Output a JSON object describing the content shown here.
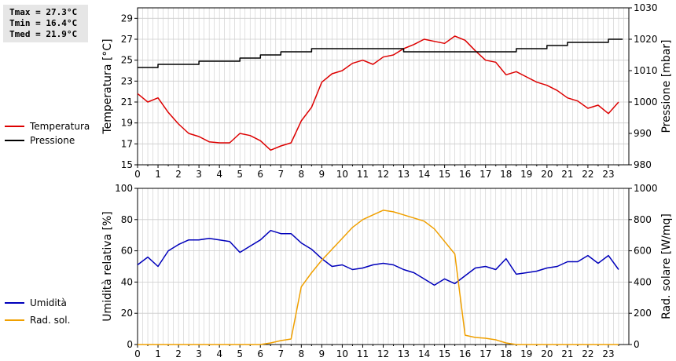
{
  "stats": {
    "tmax": "Tmax = 27.3°C",
    "tmin": "Tmin = 16.4°C",
    "tmed": "Tmed = 21.9°C"
  },
  "chart_data": [
    {
      "type": "line",
      "x_ticks": [
        "0",
        "1",
        "2",
        "3",
        "4",
        "5",
        "6",
        "7",
        "8",
        "9",
        "10",
        "11",
        "12",
        "13",
        "14",
        "15",
        "16",
        "17",
        "18",
        "19",
        "20",
        "21",
        "22",
        "23"
      ],
      "xlim": [
        0,
        24
      ],
      "ylabel": "Temperatura [°C]",
      "y2label": "Pressione [mbar]",
      "ylim": [
        15,
        30
      ],
      "y_ticks": [
        15,
        17,
        19,
        21,
        23,
        25,
        27,
        29
      ],
      "y2lim": [
        980,
        1030
      ],
      "y2_ticks": [
        980,
        990,
        1000,
        1010,
        1020,
        1030
      ],
      "grid": true,
      "legend_position": "left",
      "series": [
        {
          "name": "Temperatura",
          "color": "#dd0000",
          "axis": "left",
          "x": [
            0,
            0.5,
            1,
            1.5,
            2,
            2.5,
            3,
            3.5,
            4,
            4.5,
            5,
            5.5,
            6,
            6.5,
            7,
            7.5,
            8,
            8.5,
            9,
            9.5,
            10,
            10.5,
            11,
            11.5,
            12,
            12.5,
            13,
            13.5,
            14,
            14.5,
            15,
            15.5,
            16,
            16.5,
            17,
            17.5,
            18,
            18.5,
            19,
            19.5,
            20,
            20.5,
            21,
            21.5,
            22,
            22.5,
            23,
            23.5
          ],
          "y": [
            21.8,
            21.0,
            21.4,
            20.0,
            18.9,
            18.0,
            17.7,
            17.2,
            17.1,
            17.1,
            18.0,
            17.8,
            17.3,
            16.4,
            16.8,
            17.1,
            19.2,
            20.5,
            22.9,
            23.7,
            24.0,
            24.7,
            25.0,
            24.6,
            25.3,
            25.5,
            26.1,
            26.5,
            27.0,
            26.8,
            26.6,
            27.3,
            26.9,
            25.9,
            25.0,
            24.8,
            23.6,
            23.9,
            23.4,
            22.9,
            22.6,
            22.1,
            21.4,
            21.1,
            20.4,
            20.7,
            19.9,
            21.0
          ]
        },
        {
          "name": "Pressione",
          "color": "#000000",
          "axis": "right",
          "x": [
            0,
            0.5,
            1,
            1.5,
            2,
            2.5,
            3,
            3.5,
            4,
            4.5,
            5,
            5.5,
            6,
            6.5,
            7,
            7.5,
            8,
            8.5,
            9,
            9.5,
            10,
            10.5,
            11,
            11.5,
            12,
            12.5,
            13,
            13.5,
            14,
            14.5,
            15,
            15.5,
            16,
            16.5,
            17,
            17.5,
            18,
            18.5,
            19,
            19.5,
            20,
            20.5,
            21,
            21.5,
            22,
            22.5,
            23,
            23.5
          ],
          "y": [
            1011,
            1011,
            1012,
            1012,
            1012,
            1012,
            1013,
            1013,
            1013,
            1013,
            1014,
            1014,
            1015,
            1015,
            1016,
            1016,
            1016,
            1017,
            1017,
            1017,
            1017,
            1017,
            1017,
            1017,
            1017,
            1017,
            1016,
            1016,
            1016,
            1016,
            1016,
            1016,
            1016,
            1016,
            1016,
            1016,
            1016,
            1017,
            1017,
            1017,
            1018,
            1018,
            1019,
            1019,
            1019,
            1019,
            1020,
            1020
          ]
        }
      ]
    },
    {
      "type": "line",
      "x_ticks": [
        "0",
        "1",
        "2",
        "3",
        "4",
        "5",
        "6",
        "7",
        "8",
        "9",
        "10",
        "11",
        "12",
        "13",
        "14",
        "15",
        "16",
        "17",
        "18",
        "19",
        "20",
        "21",
        "22",
        "23"
      ],
      "xlim": [
        0,
        24
      ],
      "ylabel": "Umidità relativa [%]",
      "y2label": "Rad. solare [W/mq]",
      "ylim": [
        0,
        100
      ],
      "y_ticks": [
        0,
        20,
        40,
        60,
        80,
        100
      ],
      "y2lim": [
        0,
        1000
      ],
      "y2_ticks": [
        0,
        200,
        400,
        600,
        800,
        1000
      ],
      "grid": true,
      "legend_position": "left",
      "series": [
        {
          "name": "Umidità",
          "color": "#0000bb",
          "axis": "left",
          "x": [
            0,
            0.5,
            1,
            1.5,
            2,
            2.5,
            3,
            3.5,
            4,
            4.5,
            5,
            5.5,
            6,
            6.5,
            7,
            7.5,
            8,
            8.5,
            9,
            9.5,
            10,
            10.5,
            11,
            11.5,
            12,
            12.5,
            13,
            13.5,
            14,
            14.5,
            15,
            15.5,
            16,
            16.5,
            17,
            17.5,
            18,
            18.5,
            19,
            19.5,
            20,
            20.5,
            21,
            21.5,
            22,
            22.5,
            23,
            23.5
          ],
          "y": [
            51,
            56,
            50,
            60,
            64,
            67,
            67,
            68,
            67,
            66,
            59,
            63,
            67,
            73,
            71,
            71,
            65,
            61,
            55,
            50,
            51,
            48,
            49,
            51,
            52,
            51,
            48,
            46,
            42,
            38,
            42,
            39,
            44,
            49,
            50,
            48,
            55,
            45,
            46,
            47,
            49,
            50,
            53,
            53,
            57,
            52,
            57,
            48
          ]
        },
        {
          "name": "Rad. sol.",
          "color": "#f0a000",
          "axis": "right",
          "x": [
            0,
            0.5,
            1,
            1.5,
            2,
            2.5,
            3,
            3.5,
            4,
            4.5,
            5,
            5.5,
            6,
            6.5,
            7,
            7.5,
            8,
            8.5,
            9,
            9.5,
            10,
            10.5,
            11,
            11.5,
            12,
            12.5,
            13,
            13.5,
            14,
            14.5,
            15,
            15.5,
            16,
            16.5,
            17,
            17.5,
            18,
            18.5,
            19,
            19.5,
            20,
            20.5,
            21,
            21.5,
            22,
            22.5,
            23,
            23.5
          ],
          "y": [
            0,
            0,
            0,
            0,
            0,
            0,
            0,
            0,
            0,
            0,
            0,
            0,
            0,
            10,
            25,
            35,
            370,
            460,
            540,
            610,
            680,
            750,
            800,
            830,
            860,
            850,
            830,
            810,
            790,
            740,
            660,
            580,
            60,
            45,
            40,
            30,
            10,
            0,
            0,
            0,
            0,
            0,
            0,
            0,
            0,
            0,
            0,
            0
          ]
        }
      ]
    }
  ]
}
